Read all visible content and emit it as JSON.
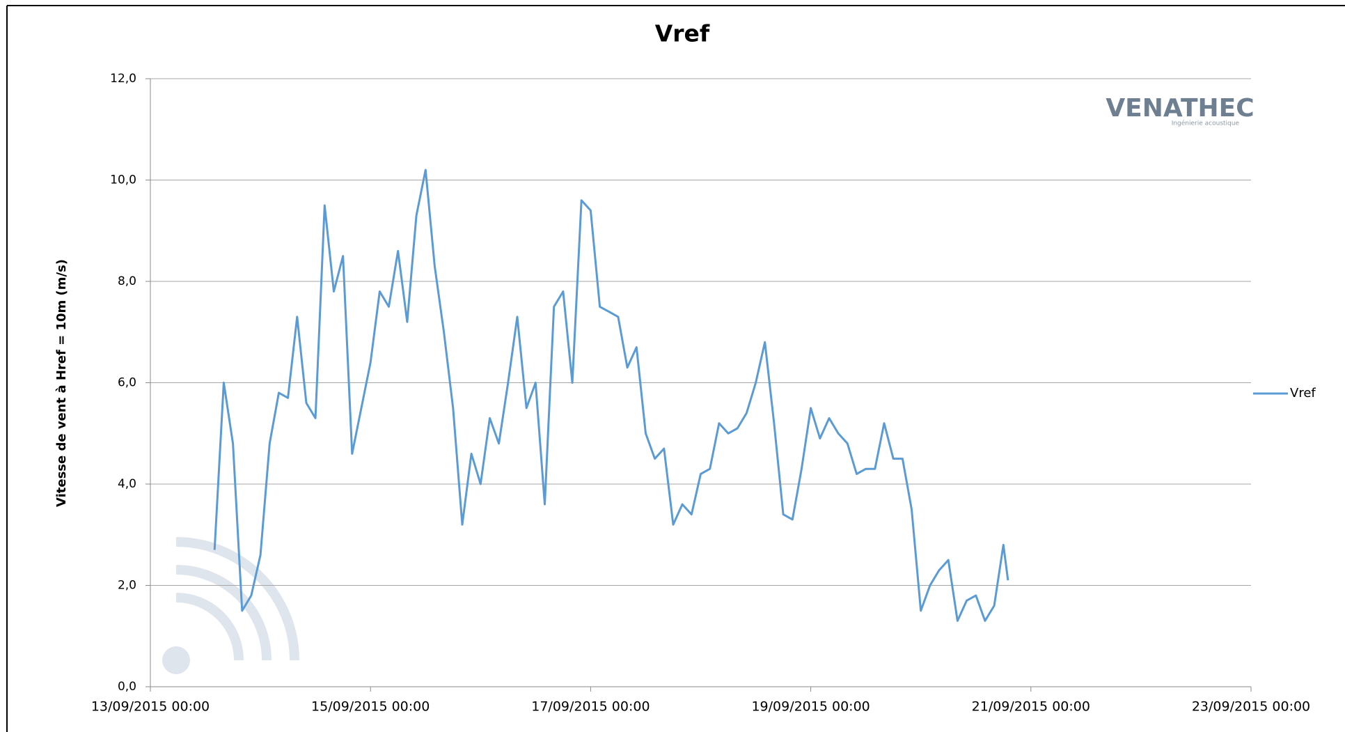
{
  "chart_data": {
    "type": "line",
    "title": "Vref",
    "y_label": "Vitesse de vent à Href = 10m (m/s)",
    "annotations": [
      "VENATHEC",
      "Ingénierie acoustique"
    ],
    "legend": "right",
    "grid": true,
    "xlim": [
      "13/09/2015 00:00",
      "23/09/2015 00:00"
    ],
    "xticks": [
      "13/09/2015 00:00",
      "15/09/2015 00:00",
      "17/09/2015 00:00",
      "19/09/2015 00:00",
      "21/09/2015 00:00",
      "23/09/2015 00:00"
    ],
    "ylim": [
      0,
      12
    ],
    "yticks": [
      {
        "value": 0,
        "label": "0,0"
      },
      {
        "value": 2,
        "label": "2,0"
      },
      {
        "value": 4,
        "label": "4,0"
      },
      {
        "value": 6,
        "label": "6,0"
      },
      {
        "value": 8,
        "label": "8,0"
      },
      {
        "value": 10,
        "label": "10,0"
      },
      {
        "value": 12,
        "label": "12,0"
      }
    ],
    "x": [
      "13/09/2015 14:00",
      "13/09/2015 16:00",
      "13/09/2015 18:00",
      "13/09/2015 20:00",
      "13/09/2015 22:00",
      "14/09/2015 00:00",
      "14/09/2015 02:00",
      "14/09/2015 04:00",
      "14/09/2015 06:00",
      "14/09/2015 08:00",
      "14/09/2015 10:00",
      "14/09/2015 12:00",
      "14/09/2015 14:00",
      "14/09/2015 16:00",
      "14/09/2015 18:00",
      "14/09/2015 20:00",
      "14/09/2015 22:00",
      "15/09/2015 00:00",
      "15/09/2015 02:00",
      "15/09/2015 04:00",
      "15/09/2015 06:00",
      "15/09/2015 08:00",
      "15/09/2015 10:00",
      "15/09/2015 12:00",
      "15/09/2015 14:00",
      "15/09/2015 16:00",
      "15/09/2015 18:00",
      "15/09/2015 20:00",
      "15/09/2015 22:00",
      "16/09/2015 00:00",
      "16/09/2015 02:00",
      "16/09/2015 04:00",
      "16/09/2015 06:00",
      "16/09/2015 08:00",
      "16/09/2015 10:00",
      "16/09/2015 12:00",
      "16/09/2015 14:00",
      "16/09/2015 16:00",
      "16/09/2015 18:00",
      "16/09/2015 20:00",
      "16/09/2015 22:00",
      "17/09/2015 00:00",
      "17/09/2015 02:00",
      "17/09/2015 04:00",
      "17/09/2015 06:00",
      "17/09/2015 08:00",
      "17/09/2015 10:00",
      "17/09/2015 12:00",
      "17/09/2015 14:00",
      "17/09/2015 16:00",
      "17/09/2015 18:00",
      "17/09/2015 20:00",
      "17/09/2015 22:00",
      "18/09/2015 00:00",
      "18/09/2015 02:00",
      "18/09/2015 04:00",
      "18/09/2015 06:00",
      "18/09/2015 08:00",
      "18/09/2015 10:00",
      "18/09/2015 12:00",
      "18/09/2015 14:00",
      "18/09/2015 16:00",
      "18/09/2015 18:00",
      "18/09/2015 20:00",
      "18/09/2015 22:00",
      "19/09/2015 00:00",
      "19/09/2015 02:00",
      "19/09/2015 04:00",
      "19/09/2015 06:00",
      "19/09/2015 08:00",
      "19/09/2015 10:00",
      "19/09/2015 12:00",
      "19/09/2015 14:00",
      "19/09/2015 16:00",
      "19/09/2015 18:00",
      "19/09/2015 20:00",
      "19/09/2015 22:00",
      "20/09/2015 00:00",
      "20/09/2015 02:00",
      "20/09/2015 04:00",
      "20/09/2015 06:00",
      "20/09/2015 08:00",
      "20/09/2015 10:00",
      "20/09/2015 12:00",
      "20/09/2015 14:00",
      "20/09/2015 16:00",
      "20/09/2015 18:00",
      "20/09/2015 19:00"
    ],
    "series": [
      {
        "name": "Vref",
        "color": "#5b9bd5",
        "values": [
          2.7,
          6.0,
          4.8,
          1.5,
          1.8,
          2.6,
          4.8,
          5.8,
          5.7,
          7.3,
          5.6,
          5.3,
          9.5,
          7.8,
          8.5,
          4.6,
          5.5,
          6.4,
          7.8,
          7.5,
          8.6,
          7.2,
          9.3,
          10.2,
          8.3,
          7.0,
          5.5,
          3.2,
          4.6,
          4.0,
          5.3,
          4.8,
          6.0,
          7.3,
          5.5,
          6.0,
          3.6,
          7.5,
          7.8,
          6.0,
          9.6,
          9.4,
          7.5,
          7.4,
          7.3,
          6.3,
          6.7,
          5.0,
          4.5,
          4.7,
          3.2,
          3.6,
          3.4,
          4.2,
          4.3,
          5.2,
          5.0,
          5.1,
          5.4,
          6.0,
          6.8,
          5.2,
          3.4,
          3.3,
          4.3,
          5.5,
          4.9,
          5.3,
          5.0,
          4.8,
          4.2,
          4.3,
          4.3,
          5.2,
          4.5,
          4.5,
          3.5,
          1.5,
          2.0,
          2.3,
          2.5,
          1.3,
          1.7,
          1.8,
          1.3,
          1.6,
          2.8,
          2.1
        ]
      }
    ]
  }
}
